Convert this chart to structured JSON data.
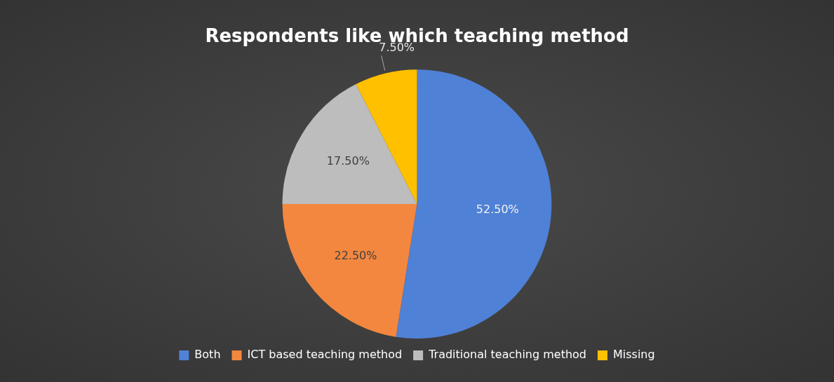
{
  "chart_data": {
    "type": "pie",
    "title": "Respondents like which teaching method",
    "categories": [
      "Both",
      "ICT based teaching method",
      "Traditional teaching method",
      "Missing"
    ],
    "values": [
      52.5,
      22.5,
      17.5,
      7.5
    ],
    "colors": [
      "#4f81d6",
      "#f3873f",
      "#bdbdbd",
      "#ffc000"
    ],
    "value_labels": [
      "52.50%",
      "22.50%",
      "17.50%",
      "7.50%"
    ],
    "legend": "bottom"
  }
}
